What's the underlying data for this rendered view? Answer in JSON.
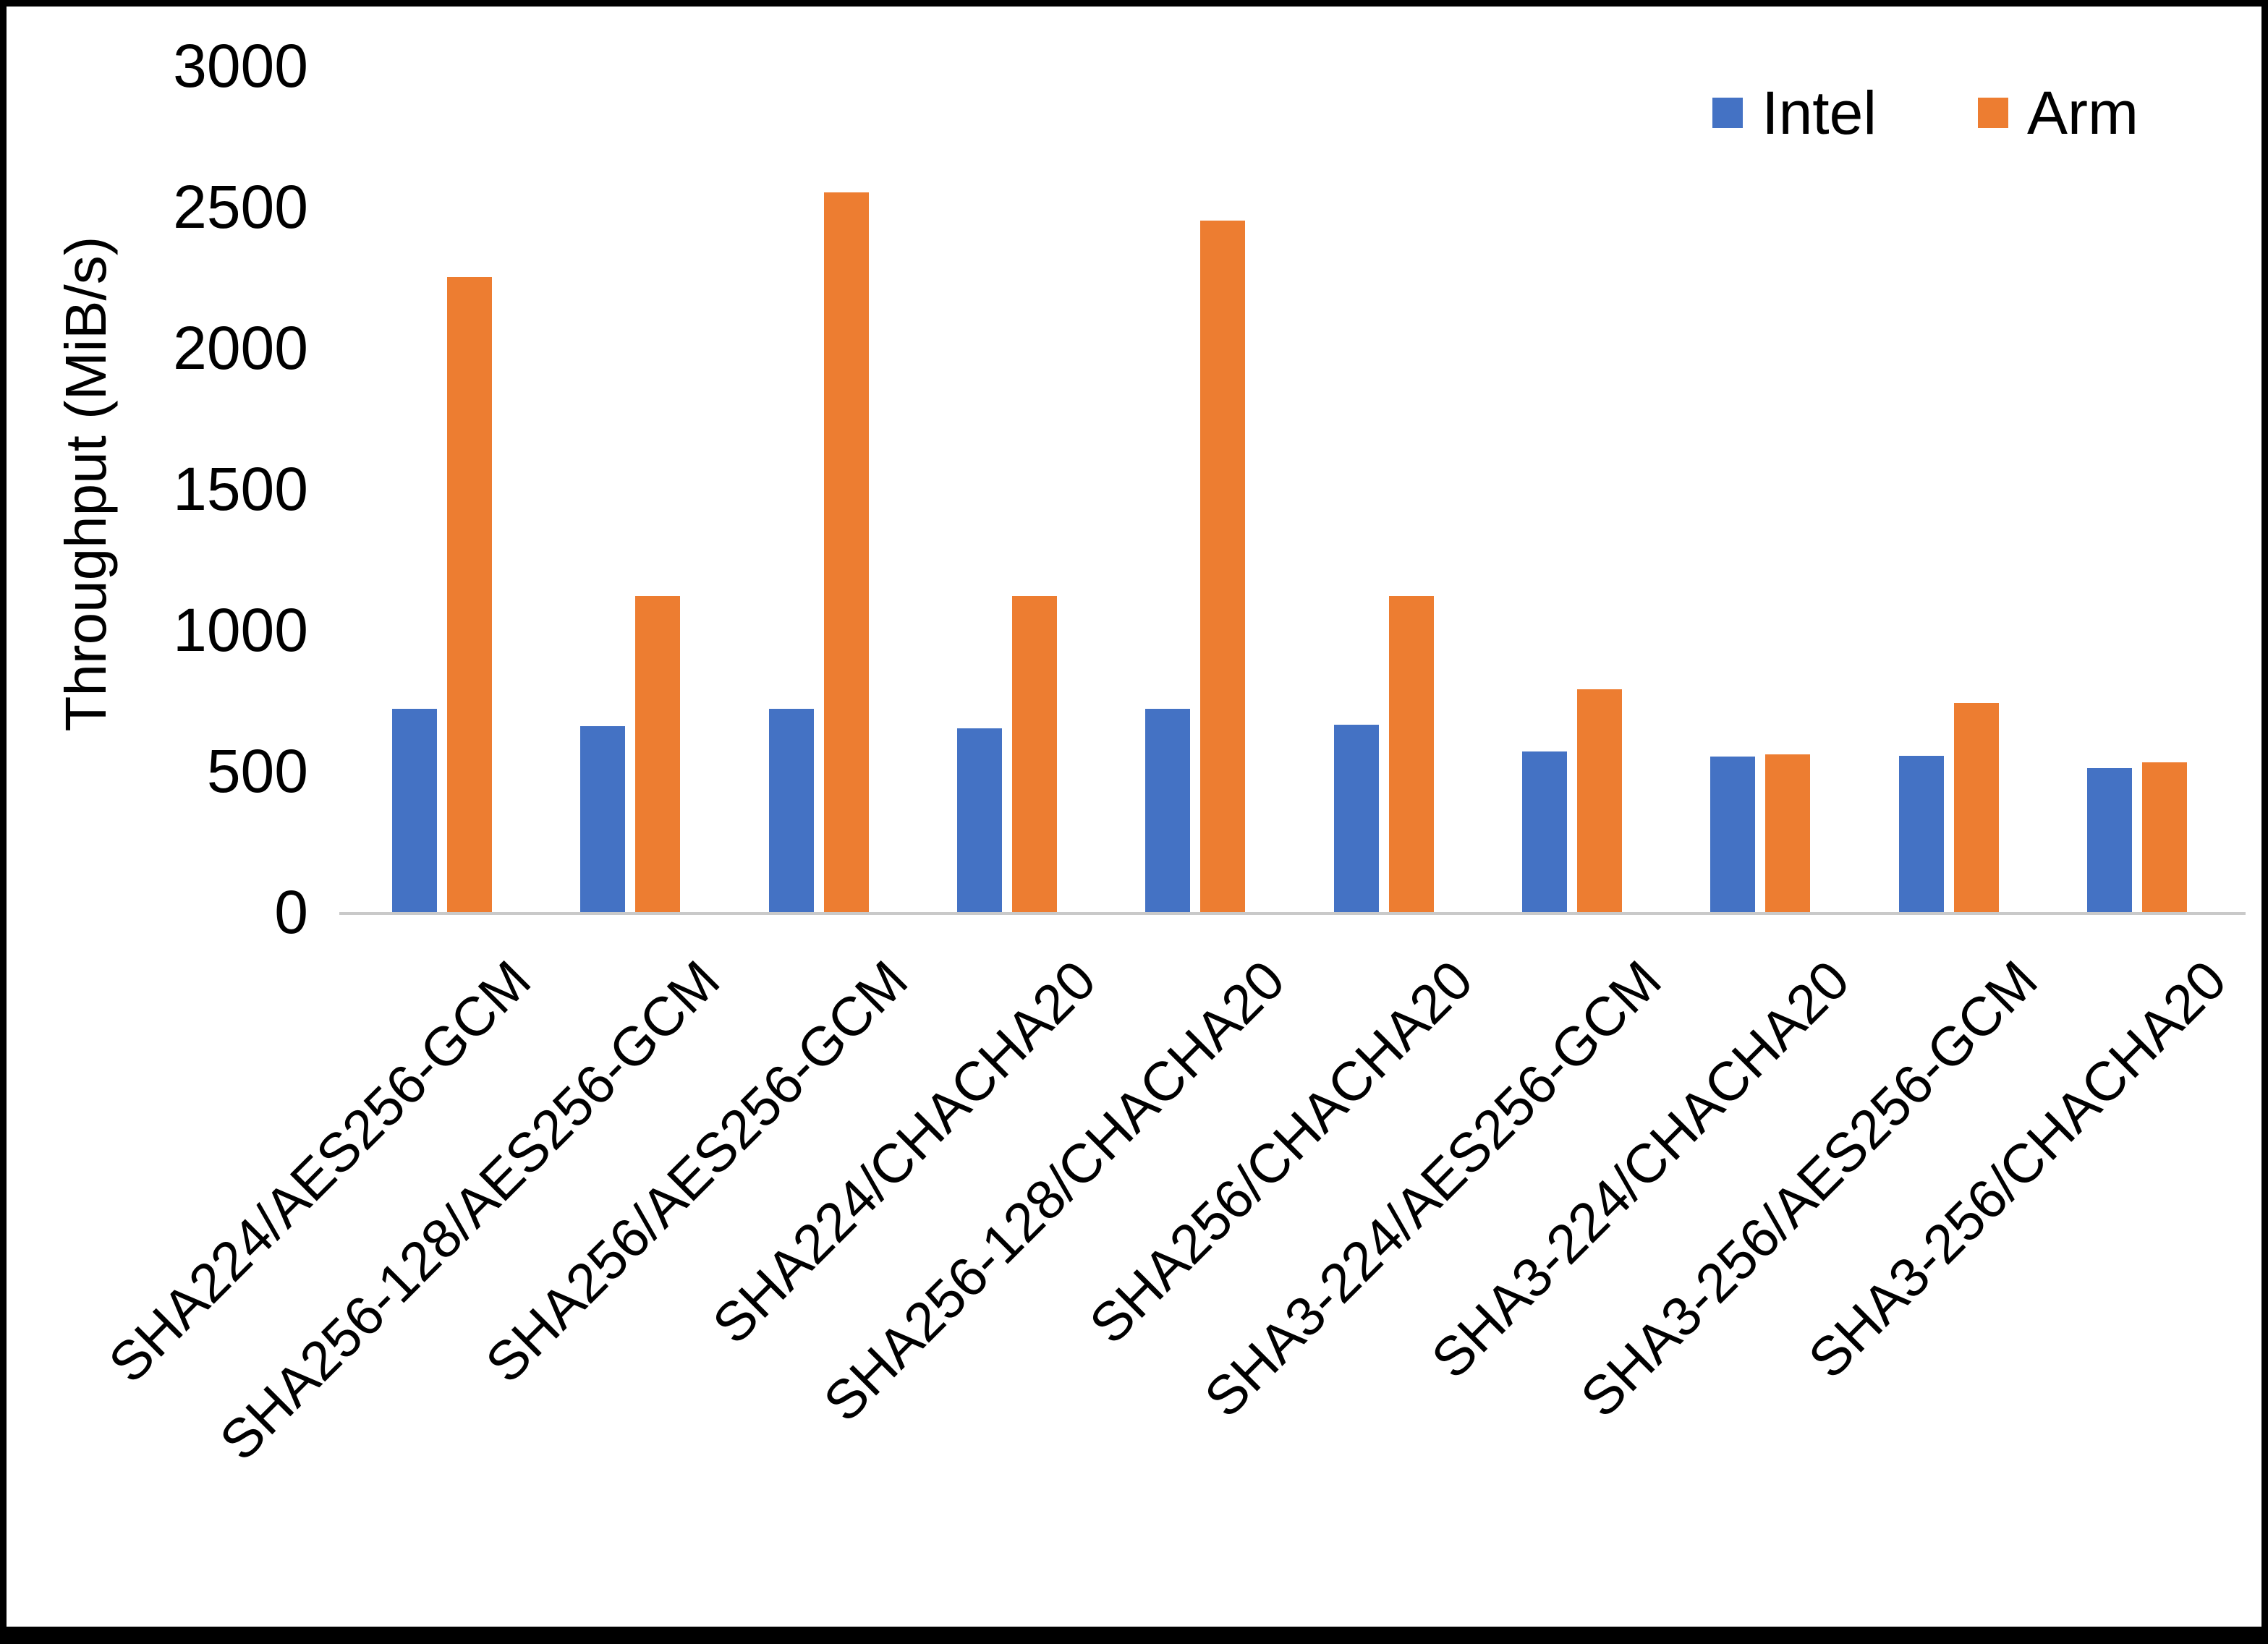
{
  "chart_data": {
    "type": "bar",
    "title": "",
    "xlabel": "",
    "ylabel": "Throughput (MiB/s)",
    "ylim": [
      0,
      3000
    ],
    "yticks": [
      0,
      500,
      1000,
      1500,
      2000,
      2500,
      3000
    ],
    "grid": false,
    "legend_position": "top-right",
    "categories": [
      "SHA224/AES256-GCM",
      "SHA256-128/AES256-GCM",
      "SHA256/AES256-GCM",
      "SHA224/CHACHA20",
      "SHA256-128/CHACHA20",
      "SHA256/CHACHA20",
      "SHA3-224/AES256-GCM",
      "SHA3-224/CHACHA20",
      "SHA3-256/AES256-GCM",
      "SHA3-256/CHACHA20"
    ],
    "series": [
      {
        "name": "Intel",
        "color": "#4472C4",
        "values": [
          720,
          660,
          720,
          650,
          720,
          665,
          570,
          550,
          555,
          510
        ]
      },
      {
        "name": "Arm",
        "color": "#ED7D31",
        "values": [
          2250,
          1120,
          2550,
          1120,
          2450,
          1120,
          790,
          560,
          740,
          530
        ]
      }
    ]
  },
  "colors": {
    "axis_line": "#c9c9c9",
    "text": "#000000",
    "background": "#ffffff",
    "border": "#000000"
  }
}
